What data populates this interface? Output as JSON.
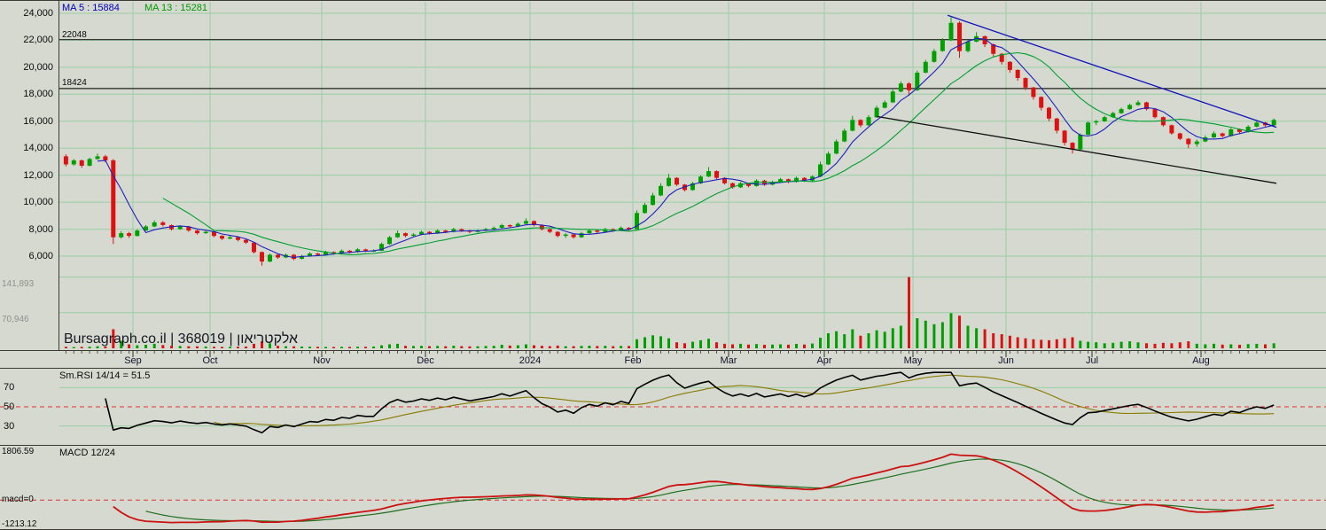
{
  "labels": {
    "ma5": "MA 5 : 15884",
    "ma13": "MA 13 : 15281",
    "watermark": "Bursagraph.co.il | 368019 | אלקטריאון",
    "rsi_title": "Sm.RSI 14/14 = 51.5",
    "macd_title": "MACD 12/24",
    "macd_zero": "macd=0"
  },
  "colors": {
    "background": "#d6d9d0",
    "grid": "#98cfa4",
    "up": "#00a000",
    "down": "#dd1111",
    "pane_border": "#3a3a32",
    "dashed": "#e03030",
    "tick": "#55554a"
  },
  "chart_data": {
    "type": "candlestick",
    "title": "Daily price chart with volume, Sm.RSI and MACD",
    "instrument": {
      "id": "368019",
      "name": "אלקטריאון",
      "source": "Bursagraph.co.il"
    },
    "y_axis": {
      "labels": [
        "24,000",
        "22,000",
        "20,000",
        "18,000",
        "16,000",
        "14,000",
        "12,000",
        "10,000",
        "8,000",
        "6,000"
      ],
      "max": 24000,
      "min": 6000,
      "step": 2000
    },
    "x_axis": {
      "months": [
        "Sep",
        "Oct",
        "Nov",
        "Dec",
        "2024",
        "Feb",
        "Mar",
        "Apr",
        "May",
        "Jun",
        "Jul",
        "Aug"
      ],
      "boundaries": [
        70,
        150,
        237,
        363,
        480,
        598,
        714,
        822,
        930,
        1030,
        1135,
        1232,
        1355,
        1442
      ],
      "candles_per_segment": [
        9,
        9,
        14,
        13,
        13,
        13,
        12,
        12,
        11,
        11,
        11,
        13,
        9
      ]
    },
    "volume_axis": {
      "labels": [
        "141,893",
        "70,946"
      ],
      "values": [
        141893,
        70946
      ],
      "scale_max": 150000
    },
    "overlays": {
      "ma5_period": 5,
      "ma5_value": 15884,
      "ma5_color": "#2020c0",
      "ma13_period": 13,
      "ma13_value": 15281,
      "ma13_color": "#00a030"
    },
    "hlines": [
      {
        "price": 22048,
        "label": "22048",
        "color": "#20201c"
      },
      {
        "price": 18424,
        "label": "18424",
        "color": "#20201c"
      }
    ],
    "trendlines": [
      {
        "name": "resistance-trendline",
        "color": "#1111bb",
        "from": {
          "index": 109.6,
          "price": 23850
        },
        "to": {
          "index": 149.3,
          "price": 15550
        }
      },
      {
        "name": "support-trendline",
        "color": "#101010",
        "from": {
          "index": 101,
          "price": 16350
        },
        "to": {
          "index": 149.3,
          "price": 11400
        }
      }
    ],
    "rsi": {
      "period": 14,
      "smooth": 14,
      "last": 51.5,
      "guides": [
        70,
        50,
        30
      ],
      "guide_labels": [
        "70",
        "50",
        "30"
      ],
      "range": [
        12,
        88
      ],
      "line_color": "#000000",
      "signal_color": "#8a7a00"
    },
    "macd": {
      "fast": 12,
      "slow": 24,
      "max": 1806.59,
      "min": -1213.12,
      "line_color": "#cc1111",
      "signal_color": "#1d6e1d"
    },
    "candles": [
      [
        13400,
        13550,
        12650,
        12800,
        3000
      ],
      [
        12800,
        13200,
        12700,
        13100,
        2500
      ],
      [
        13100,
        13150,
        12550,
        12700,
        2800
      ],
      [
        12700,
        13300,
        12650,
        13200,
        3200
      ],
      [
        13200,
        13600,
        13150,
        13400,
        4000
      ],
      [
        13400,
        13500,
        12950,
        13100,
        3500
      ],
      [
        13100,
        13200,
        6900,
        7400,
        38000
      ],
      [
        7400,
        7850,
        7300,
        7700,
        15000
      ],
      [
        7700,
        7800,
        7350,
        7500,
        8000
      ],
      [
        7500,
        8000,
        7450,
        7900,
        6000
      ],
      [
        7900,
        8300,
        7850,
        8200,
        7000
      ],
      [
        8200,
        8650,
        8150,
        8500,
        9000
      ],
      [
        8500,
        8600,
        8200,
        8300,
        6500
      ],
      [
        8300,
        8350,
        7900,
        8000,
        5000
      ],
      [
        8000,
        8300,
        7950,
        8200,
        4500
      ],
      [
        8200,
        8250,
        7800,
        7900,
        4000
      ],
      [
        7900,
        7950,
        7600,
        7700,
        3800
      ],
      [
        7700,
        7900,
        7650,
        7800,
        3500
      ],
      [
        7800,
        7850,
        7400,
        7500,
        3000
      ],
      [
        7500,
        7550,
        7200,
        7300,
        2800
      ],
      [
        7300,
        7500,
        7250,
        7400,
        3000
      ],
      [
        7400,
        7450,
        7100,
        7200,
        3200
      ],
      [
        7200,
        7250,
        6900,
        7000,
        3500
      ],
      [
        7000,
        7050,
        6200,
        6300,
        9000
      ],
      [
        6300,
        6350,
        5300,
        5600,
        14000
      ],
      [
        5600,
        6200,
        5550,
        6100,
        10000
      ],
      [
        6100,
        6150,
        5800,
        5900,
        5000
      ],
      [
        5900,
        6200,
        5850,
        6100,
        4000
      ],
      [
        6100,
        6150,
        5700,
        5800,
        3800
      ],
      [
        5800,
        6100,
        5750,
        6000,
        3500
      ],
      [
        6000,
        6300,
        5950,
        6200,
        3200
      ],
      [
        6200,
        6250,
        6000,
        6100,
        3000
      ],
      [
        6100,
        6400,
        6050,
        6300,
        2800
      ],
      [
        6300,
        6350,
        6100,
        6200,
        2600
      ],
      [
        6200,
        6500,
        6150,
        6400,
        3000
      ],
      [
        6400,
        6450,
        6200,
        6300,
        2800
      ],
      [
        6300,
        6600,
        6250,
        6500,
        3200
      ],
      [
        6500,
        6550,
        6300,
        6400,
        3000
      ],
      [
        6400,
        6500,
        6300,
        6400,
        3500
      ],
      [
        6400,
        7000,
        6380,
        6900,
        6000
      ],
      [
        6900,
        7500,
        6850,
        7400,
        8000
      ],
      [
        7400,
        7900,
        7350,
        7700,
        9000
      ],
      [
        7700,
        7750,
        7400,
        7500,
        5000
      ],
      [
        7500,
        7700,
        7450,
        7600,
        4500
      ],
      [
        7600,
        7900,
        7550,
        7800,
        5000
      ],
      [
        7800,
        7850,
        7600,
        7700,
        4200
      ],
      [
        7700,
        8000,
        7650,
        7900,
        4800
      ],
      [
        7900,
        7950,
        7700,
        7800,
        4000
      ],
      [
        7800,
        8100,
        7750,
        8000,
        5200
      ],
      [
        8000,
        8050,
        7800,
        7900,
        4300
      ],
      [
        7900,
        7950,
        7700,
        7800,
        3800
      ],
      [
        7800,
        8000,
        7750,
        7900,
        4000
      ],
      [
        7900,
        8100,
        7850,
        8000,
        4500
      ],
      [
        8000,
        8200,
        7950,
        8100,
        5000
      ],
      [
        8100,
        8400,
        8050,
        8300,
        7000
      ],
      [
        8300,
        8350,
        8100,
        8200,
        5500
      ],
      [
        8200,
        8500,
        8150,
        8400,
        6000
      ],
      [
        8400,
        8800,
        8350,
        8600,
        8000
      ],
      [
        8600,
        8650,
        8200,
        8300,
        6000
      ],
      [
        8300,
        8350,
        7900,
        8000,
        5000
      ],
      [
        8000,
        8050,
        7700,
        7800,
        4200
      ],
      [
        7800,
        7850,
        7400,
        7500,
        5500
      ],
      [
        7500,
        7700,
        7350,
        7600,
        4000
      ],
      [
        7600,
        7650,
        7300,
        7400,
        4300
      ],
      [
        7400,
        7800,
        7350,
        7700,
        4800
      ],
      [
        7700,
        8000,
        7650,
        7900,
        5200
      ],
      [
        7900,
        7950,
        7700,
        7800,
        4500
      ],
      [
        7800,
        8100,
        7750,
        8000,
        5000
      ],
      [
        8000,
        8050,
        7800,
        7900,
        4300
      ],
      [
        7900,
        8200,
        7850,
        8100,
        4800
      ],
      [
        8100,
        8150,
        7900,
        8000,
        4600
      ],
      [
        8000,
        9400,
        7950,
        9200,
        18000
      ],
      [
        9200,
        9950,
        9150,
        9800,
        22000
      ],
      [
        9800,
        10700,
        9750,
        10500,
        26000
      ],
      [
        10500,
        11400,
        10450,
        11200,
        24000
      ],
      [
        11200,
        12100,
        11150,
        11800,
        20000
      ],
      [
        11800,
        11850,
        11200,
        11300,
        12000
      ],
      [
        11300,
        11350,
        10800,
        10900,
        10000
      ],
      [
        10900,
        11500,
        10850,
        11400,
        13000
      ],
      [
        11400,
        12000,
        11350,
        11900,
        16000
      ],
      [
        11900,
        12600,
        11850,
        12300,
        19000
      ],
      [
        12300,
        12350,
        11700,
        11800,
        12000
      ],
      [
        11800,
        11850,
        11300,
        11400,
        9000
      ],
      [
        11400,
        11450,
        11000,
        11100,
        8000
      ],
      [
        11100,
        11500,
        11050,
        11400,
        9000
      ],
      [
        11400,
        11450,
        11100,
        11200,
        7500
      ],
      [
        11200,
        11700,
        11150,
        11600,
        8500
      ],
      [
        11600,
        11650,
        11200,
        11300,
        7000
      ],
      [
        11300,
        11600,
        11250,
        11500,
        7500
      ],
      [
        11500,
        11800,
        11450,
        11700,
        8000
      ],
      [
        11700,
        11750,
        11400,
        11500,
        7200
      ],
      [
        11500,
        11900,
        11450,
        11800,
        8800
      ],
      [
        11800,
        11850,
        11500,
        11600,
        7600
      ],
      [
        11600,
        12000,
        11550,
        11900,
        9500
      ],
      [
        11900,
        13000,
        11850,
        12800,
        21000
      ],
      [
        12800,
        13750,
        12750,
        13600,
        30000
      ],
      [
        13600,
        14650,
        13550,
        14500,
        34000
      ],
      [
        14500,
        15450,
        14450,
        15300,
        28000
      ],
      [
        15300,
        16400,
        15250,
        16100,
        38000
      ],
      [
        16100,
        16150,
        15550,
        15700,
        25000
      ],
      [
        15700,
        16450,
        15650,
        16300,
        30000
      ],
      [
        16300,
        17150,
        16250,
        17000,
        36000
      ],
      [
        17000,
        17550,
        16950,
        17400,
        33000
      ],
      [
        17400,
        18350,
        17350,
        18200,
        40000
      ],
      [
        18200,
        18950,
        18150,
        18800,
        45000
      ],
      [
        18800,
        18900,
        17900,
        18300,
        141893
      ],
      [
        18300,
        19750,
        18250,
        19600,
        60000
      ],
      [
        19600,
        20550,
        19550,
        20400,
        55000
      ],
      [
        20400,
        21350,
        20350,
        21200,
        48000
      ],
      [
        21200,
        22150,
        21150,
        22000,
        52000
      ],
      [
        22000,
        23700,
        21950,
        23300,
        70000
      ],
      [
        23300,
        23400,
        20700,
        21200,
        65000
      ],
      [
        21200,
        22000,
        21100,
        21900,
        45000
      ],
      [
        21900,
        22600,
        21850,
        22300,
        40000
      ],
      [
        22300,
        22350,
        21500,
        21700,
        38000
      ],
      [
        21700,
        21750,
        20800,
        21000,
        30000
      ],
      [
        21000,
        21050,
        20200,
        20400,
        28000
      ],
      [
        20400,
        20450,
        19600,
        19800,
        25000
      ],
      [
        19800,
        19850,
        19000,
        19200,
        22000
      ],
      [
        19200,
        19250,
        18300,
        18500,
        20000
      ],
      [
        18500,
        18550,
        17600,
        17800,
        18000
      ],
      [
        17800,
        17850,
        16800,
        17000,
        17000
      ],
      [
        17000,
        17050,
        16000,
        16200,
        16000
      ],
      [
        16200,
        16250,
        15100,
        15300,
        18000
      ],
      [
        15300,
        15350,
        14200,
        14400,
        20000
      ],
      [
        14400,
        14450,
        13600,
        13900,
        22000
      ],
      [
        13900,
        15100,
        13850,
        15000,
        15000
      ],
      [
        15000,
        16000,
        14950,
        15900,
        13000
      ],
      [
        15900,
        16100,
        15700,
        16000,
        12000
      ],
      [
        16000,
        16400,
        15950,
        16300,
        10000
      ],
      [
        16300,
        16700,
        16250,
        16600,
        11000
      ],
      [
        16600,
        17000,
        16550,
        16900,
        13000
      ],
      [
        16900,
        17300,
        16850,
        17200,
        14000
      ],
      [
        17200,
        17550,
        17150,
        17400,
        12000
      ],
      [
        17400,
        17450,
        16800,
        16900,
        10000
      ],
      [
        16900,
        16950,
        16200,
        16300,
        9000
      ],
      [
        16300,
        16350,
        15600,
        15700,
        11000
      ],
      [
        15700,
        15750,
        15000,
        15100,
        10000
      ],
      [
        15100,
        15150,
        14600,
        14700,
        12000
      ],
      [
        14700,
        14750,
        14000,
        14300,
        14000
      ],
      [
        14300,
        14650,
        14100,
        14500,
        9000
      ],
      [
        14500,
        14950,
        14450,
        14800,
        8000
      ],
      [
        14800,
        15250,
        14750,
        15100,
        9000
      ],
      [
        15100,
        15150,
        14800,
        14900,
        7500
      ],
      [
        14900,
        15500,
        14850,
        15400,
        8000
      ],
      [
        15400,
        15450,
        15100,
        15200,
        7000
      ],
      [
        15200,
        15700,
        15150,
        15600,
        8500
      ],
      [
        15600,
        16000,
        15550,
        15900,
        9000
      ],
      [
        15900,
        15950,
        15600,
        15700,
        8000
      ],
      [
        15700,
        16200,
        15650,
        16100,
        10000
      ]
    ]
  }
}
